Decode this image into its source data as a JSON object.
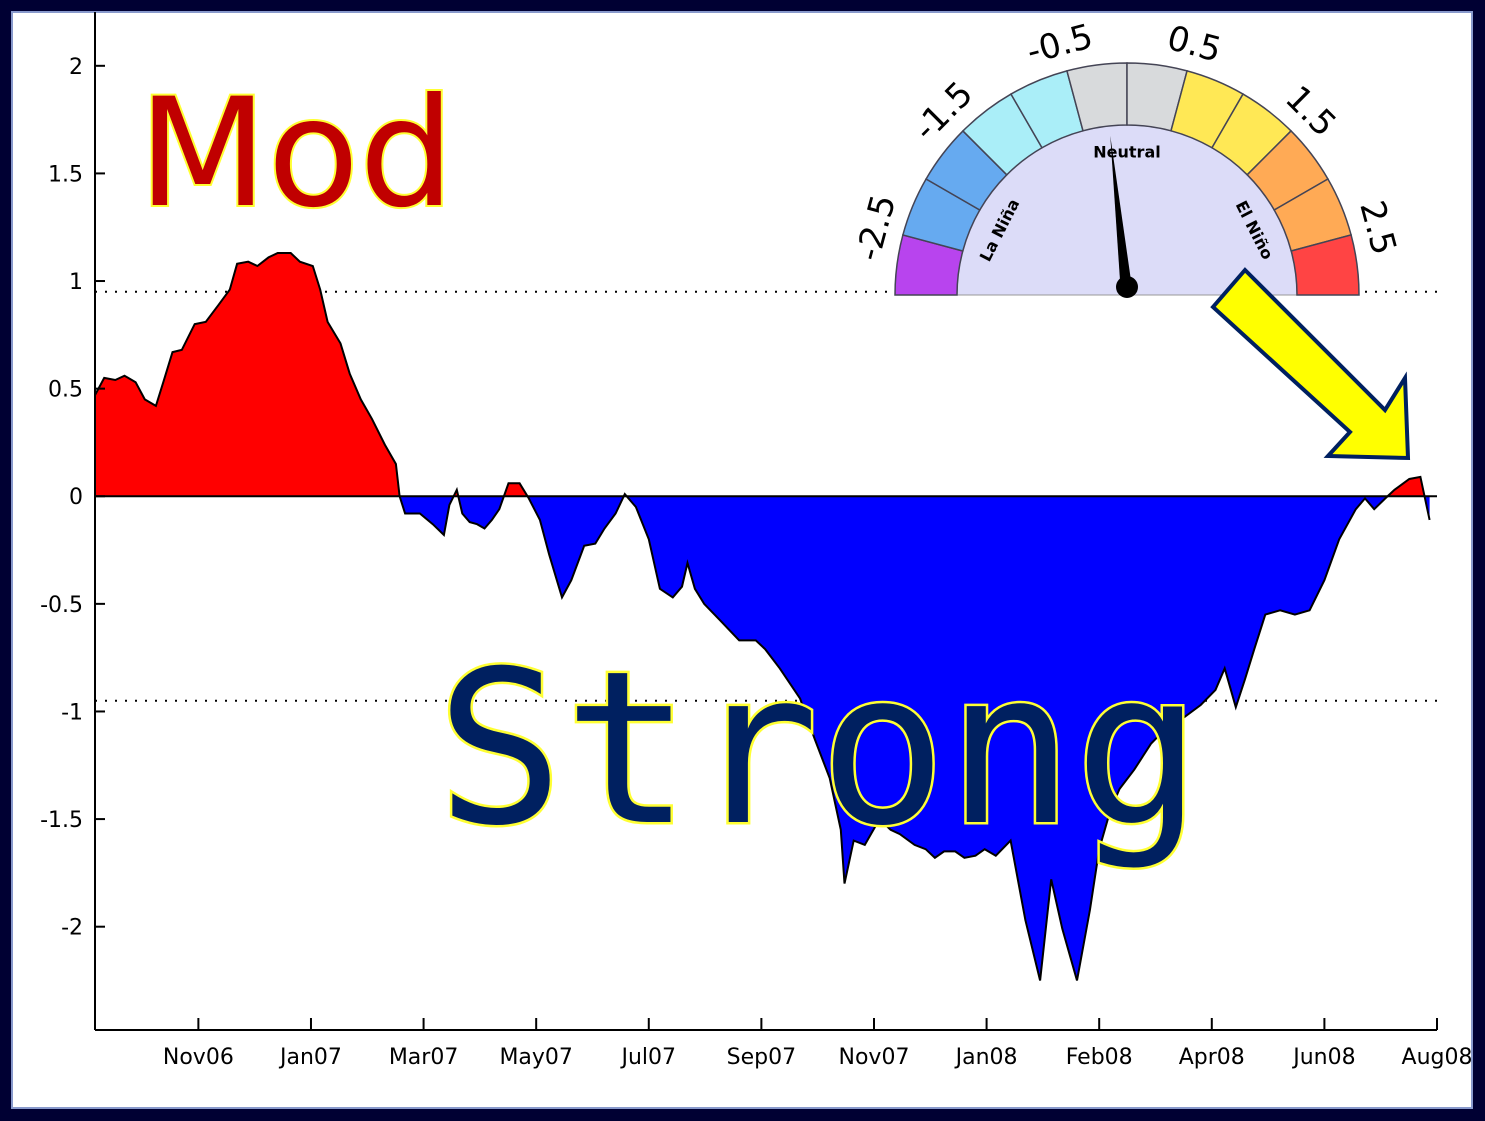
{
  "chart_data": {
    "type": "area",
    "annotations": [
      "Mod",
      "Strong"
    ],
    "x": [
      0,
      5,
      11,
      16,
      22,
      27,
      33,
      37,
      42,
      47,
      54,
      60,
      67,
      73,
      77,
      83,
      88,
      94,
      99,
      106,
      111,
      118,
      122,
      126,
      133,
      138,
      144,
      150,
      157,
      163,
      165,
      168,
      176,
      183,
      189,
      192,
      196,
      199,
      203,
      207,
      211,
      215,
      219,
      224,
      230,
      235,
      241,
      246,
      253,
      258,
      265,
      271,
      276,
      282,
      287,
      293,
      300,
      306,
      313,
      318,
      321,
      325,
      330,
      339,
      349,
      358,
      363,
      371,
      382,
      390,
      398,
      404,
      406,
      411,
      417,
      425,
      431,
      436,
      444,
      450,
      455,
      460,
      466,
      471,
      477,
      482,
      488,
      496,
      504,
      512,
      518,
      524,
      532,
      539,
      544,
      550,
      555,
      563,
      572,
      580,
      588,
      599,
      607,
      612,
      618,
      623,
      628,
      634,
      642,
      650,
      658,
      666,
      674,
      683,
      688,
      693,
      699,
      704,
      712,
      718,
      723
    ],
    "values": [
      0.47,
      0.55,
      0.54,
      0.56,
      0.53,
      0.45,
      0.42,
      0.53,
      0.67,
      0.68,
      0.8,
      0.81,
      0.89,
      0.96,
      1.08,
      1.09,
      1.07,
      1.11,
      1.13,
      1.13,
      1.09,
      1.07,
      0.96,
      0.81,
      0.71,
      0.57,
      0.45,
      0.36,
      0.24,
      0.15,
      0.0,
      -0.08,
      -0.08,
      -0.13,
      -0.18,
      -0.04,
      0.03,
      -0.08,
      -0.12,
      -0.13,
      -0.15,
      -0.11,
      -0.06,
      0.06,
      0.06,
      -0.01,
      -0.11,
      -0.27,
      -0.47,
      -0.39,
      -0.23,
      -0.22,
      -0.15,
      -0.08,
      0.01,
      -0.05,
      -0.2,
      -0.43,
      -0.47,
      -0.42,
      -0.31,
      -0.43,
      -0.5,
      -0.58,
      -0.67,
      -0.67,
      -0.71,
      -0.8,
      -0.94,
      -1.13,
      -1.31,
      -1.55,
      -1.8,
      -1.6,
      -1.62,
      -1.5,
      -1.55,
      -1.57,
      -1.62,
      -1.64,
      -1.68,
      -1.65,
      -1.65,
      -1.68,
      -1.67,
      -1.64,
      -1.67,
      -1.6,
      -1.97,
      -2.25,
      -1.78,
      -2.01,
      -2.25,
      -1.92,
      -1.64,
      -1.46,
      -1.36,
      -1.27,
      -1.15,
      -1.08,
      -1.04,
      -0.97,
      -0.9,
      -0.8,
      -0.98,
      -0.85,
      -0.71,
      -0.55,
      -0.53,
      -0.55,
      -0.53,
      -0.39,
      -0.2,
      -0.06,
      -0.01,
      -0.06,
      -0.01,
      0.03,
      0.08,
      0.09,
      -0.11
    ],
    "positive_color": "#ff0000",
    "negative_color": "#0000ff",
    "thresholds": [
      0.95,
      -0.95
    ],
    "xlim": [
      0,
      727
    ],
    "ylim": [
      -2.48,
      2.25
    ],
    "xticks": [
      {
        "value": 56,
        "label": "Nov06"
      },
      {
        "value": 117,
        "label": "Jan07"
      },
      {
        "value": 178,
        "label": "Mar07"
      },
      {
        "value": 239,
        "label": "May07"
      },
      {
        "value": 300,
        "label": "Jul07"
      },
      {
        "value": 361,
        "label": "Sep07"
      },
      {
        "value": 422,
        "label": "Nov07"
      },
      {
        "value": 483,
        "label": "Jan08"
      },
      {
        "value": 544,
        "label": "Feb08"
      },
      {
        "value": 605,
        "label": "Apr08"
      },
      {
        "value": 666,
        "label": "Jun08"
      },
      {
        "value": 727,
        "label": "Aug08"
      }
    ],
    "yticks": [
      2,
      1.5,
      1,
      0.5,
      0,
      -0.5,
      -1,
      -1.5,
      -2
    ],
    "gauge": {
      "range": [
        -3,
        3
      ],
      "ticks": [
        -2.5,
        -1.5,
        -0.5,
        0.5,
        1.5,
        2.5
      ],
      "value": -0.2,
      "segment_colors": [
        "#b844ee",
        "#66aaf0",
        "#66aaf0",
        "#aaeef8",
        "#aaeef8",
        "#d8dadc",
        "#d8dadc",
        "#ffe855",
        "#ffe855",
        "#ffaa55",
        "#ffaa55",
        "#ff4444"
      ],
      "labels": [
        "La Niña",
        "Neutral",
        "El Niño"
      ]
    }
  }
}
